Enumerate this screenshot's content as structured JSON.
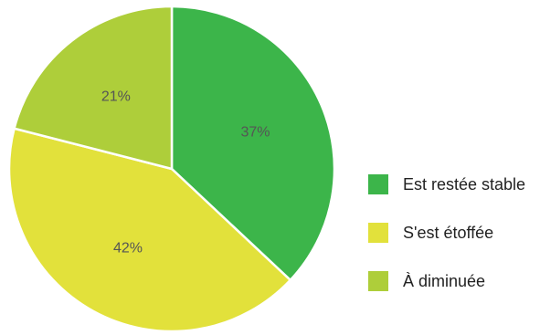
{
  "chart_data": {
    "type": "pie",
    "categories": [
      "Est restée stable",
      "S'est étoffée",
      "À diminuée"
    ],
    "values": [
      37,
      42,
      21
    ],
    "labels": [
      "37%",
      "42%",
      "21%"
    ],
    "colors": [
      "#3cb54a",
      "#e2e13b",
      "#aece3a"
    ],
    "start_angle_deg": 0,
    "direction": "clockwise",
    "legend_position": "right"
  },
  "legend": {
    "items": [
      {
        "label": "Est restée stable",
        "color": "#3cb54a"
      },
      {
        "label": "S'est étoffée",
        "color": "#e2e13b"
      },
      {
        "label": "À diminuée",
        "color": "#aece3a"
      }
    ]
  }
}
